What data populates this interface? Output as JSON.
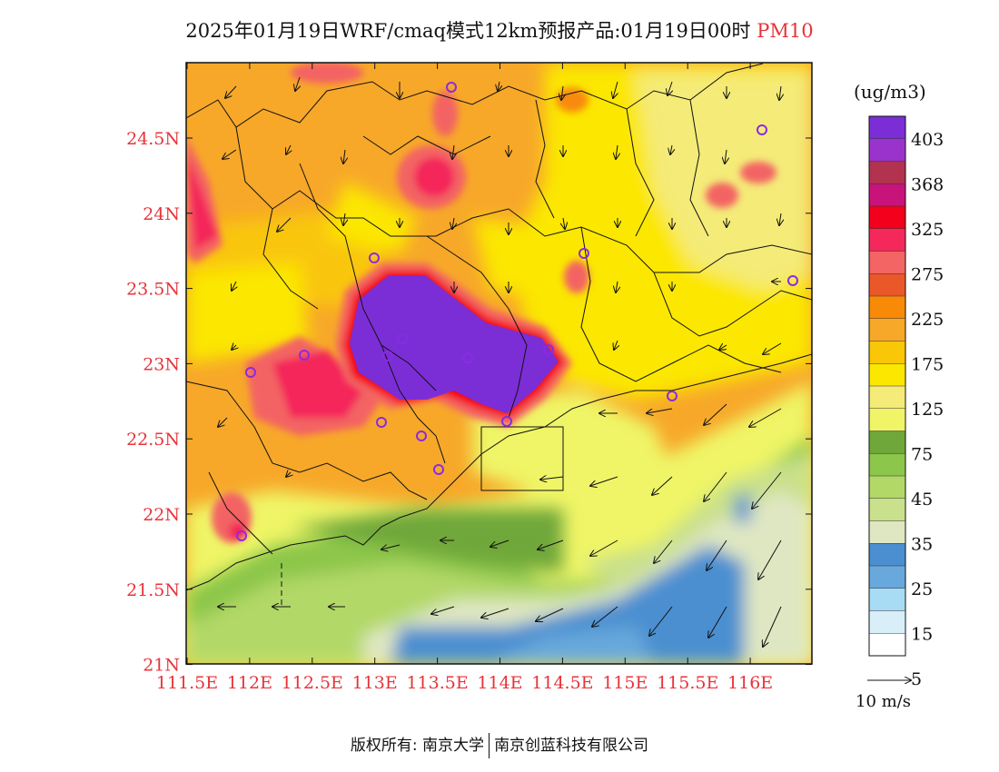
{
  "title": {
    "main": "2025年01月19日WRF/cmaq模式12km预报产品:01月19日00时",
    "pollutant": "PM10"
  },
  "map": {
    "lat_labels": [
      "24.5N",
      "24N",
      "23.5N",
      "23N",
      "22.5N",
      "22N",
      "21.5N",
      "21N"
    ],
    "lon_labels": [
      "111.5E",
      "112E",
      "112.5E",
      "113E",
      "113.5E",
      "114E",
      "114.5E",
      "115E",
      "115.5E",
      "116E"
    ],
    "label_color": "#e8333a"
  },
  "legend": {
    "unit": "(ug/m3)",
    "labels": [
      "403",
      "368",
      "325",
      "275",
      "225",
      "175",
      "125",
      "75",
      "45",
      "35",
      "25",
      "15",
      "5"
    ],
    "colors": [
      "#7b2ed6",
      "#9a33cc",
      "#b1334f",
      "#c8137a",
      "#f2001c",
      "#f4285a",
      "#f36464",
      "#ea5729",
      "#f88a07",
      "#f7a829",
      "#f9c608",
      "#fbe700",
      "#f4eb78",
      "#eff566",
      "#6fa73a",
      "#8cc64a",
      "#b2d867",
      "#c9e08c",
      "#dfe7c2",
      "#4b8fd0",
      "#68a8dc",
      "#a8dbf4",
      "#d8eff9",
      "#ffffff"
    ],
    "wind_scale_label": "10 m/s"
  },
  "footer": {
    "left": "版权所有: 南京大学",
    "right": "南京创蓝科技有限公司"
  }
}
